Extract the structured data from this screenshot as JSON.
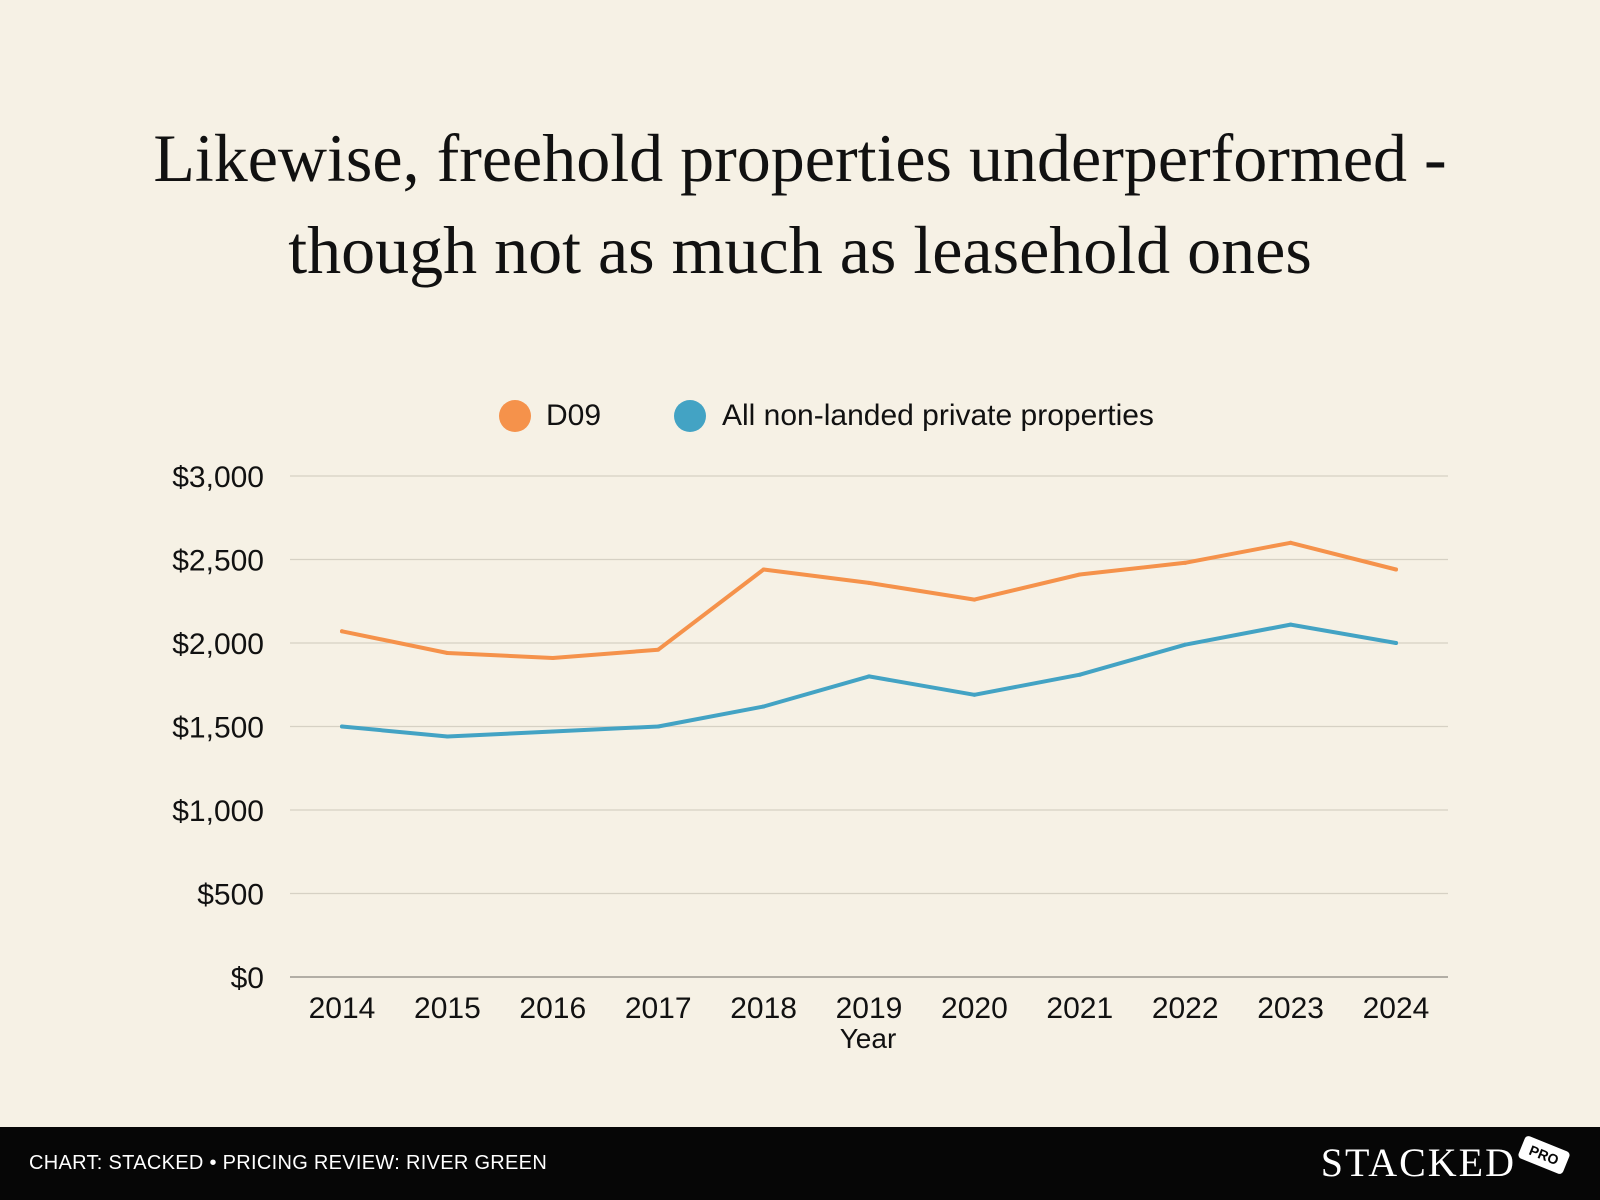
{
  "chart_data": {
    "type": "line",
    "title_line1": "Likewise, freehold properties underperformed -",
    "title_line2": "though not as much as leasehold ones",
    "xlabel": "Year",
    "ylabel": "",
    "categories": [
      "2014",
      "2015",
      "2016",
      "2017",
      "2018",
      "2019",
      "2020",
      "2021",
      "2022",
      "2023",
      "2024"
    ],
    "ylim": [
      0,
      3000
    ],
    "yticks": [
      0,
      500,
      1000,
      1500,
      2000,
      2500,
      3000
    ],
    "ytick_labels": [
      "$0",
      "$500",
      "$1,000",
      "$1,500",
      "$2,000",
      "$2,500",
      "$3,000"
    ],
    "grid": true,
    "legend_position": "top-center",
    "series": [
      {
        "name": "D09",
        "color": "#f5924b",
        "values": [
          2070,
          1940,
          1910,
          1960,
          2440,
          2360,
          2260,
          2410,
          2480,
          2600,
          2440
        ]
      },
      {
        "name": "All non-landed private properties",
        "color": "#43a3c4",
        "values": [
          1500,
          1440,
          1470,
          1500,
          1620,
          1800,
          1690,
          1810,
          1990,
          2110,
          2000
        ]
      }
    ]
  },
  "footer": {
    "credit": "CHART: STACKED • PRICING REVIEW: RIVER GREEN",
    "brand": "STACKED",
    "badge": "PRO"
  }
}
